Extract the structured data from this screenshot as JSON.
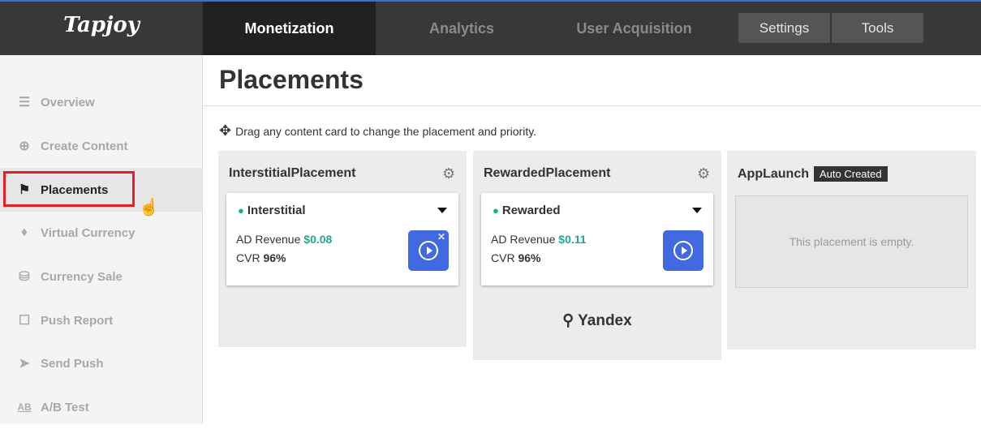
{
  "brand": "Tapjoy",
  "nav": {
    "tabs": [
      "Monetization",
      "Analytics",
      "User Acquisition"
    ],
    "active": "Monetization",
    "buttons": [
      "Settings",
      "Tools"
    ]
  },
  "sidebar": {
    "items": [
      {
        "label": "Overview",
        "icon": "list-icon"
      },
      {
        "label": "Create Content",
        "icon": "add-content-icon"
      },
      {
        "label": "Placements",
        "icon": "flag-icon"
      },
      {
        "label": "Virtual Currency",
        "icon": "diamond-icon"
      },
      {
        "label": "Currency Sale",
        "icon": "coins-icon"
      },
      {
        "label": "Push Report",
        "icon": "notification-icon"
      },
      {
        "label": "Send Push",
        "icon": "cursor-icon"
      },
      {
        "label": "A/B Test",
        "icon": "ab-icon"
      }
    ],
    "active": "Placements"
  },
  "page": {
    "title": "Placements",
    "hint": "Drag any content card to change the placement and priority."
  },
  "placements": [
    {
      "name": "InterstitialPlacement",
      "card": {
        "type": "Interstitial",
        "revenue_label": "AD Revenue",
        "revenue": "$0.08",
        "cvr_label": "CVR",
        "cvr": "96%"
      }
    },
    {
      "name": "RewardedPlacement",
      "card": {
        "type": "Rewarded",
        "revenue_label": "AD Revenue",
        "revenue": "$0.11",
        "cvr_label": "CVR",
        "cvr": "96%"
      },
      "network": "Yandex"
    },
    {
      "name": "AppLaunch",
      "badge": "Auto Created",
      "empty": "This placement is empty."
    }
  ],
  "colors": {
    "accent": "#1fa98f",
    "play": "#4169e1",
    "highlight": "#e41e26"
  }
}
